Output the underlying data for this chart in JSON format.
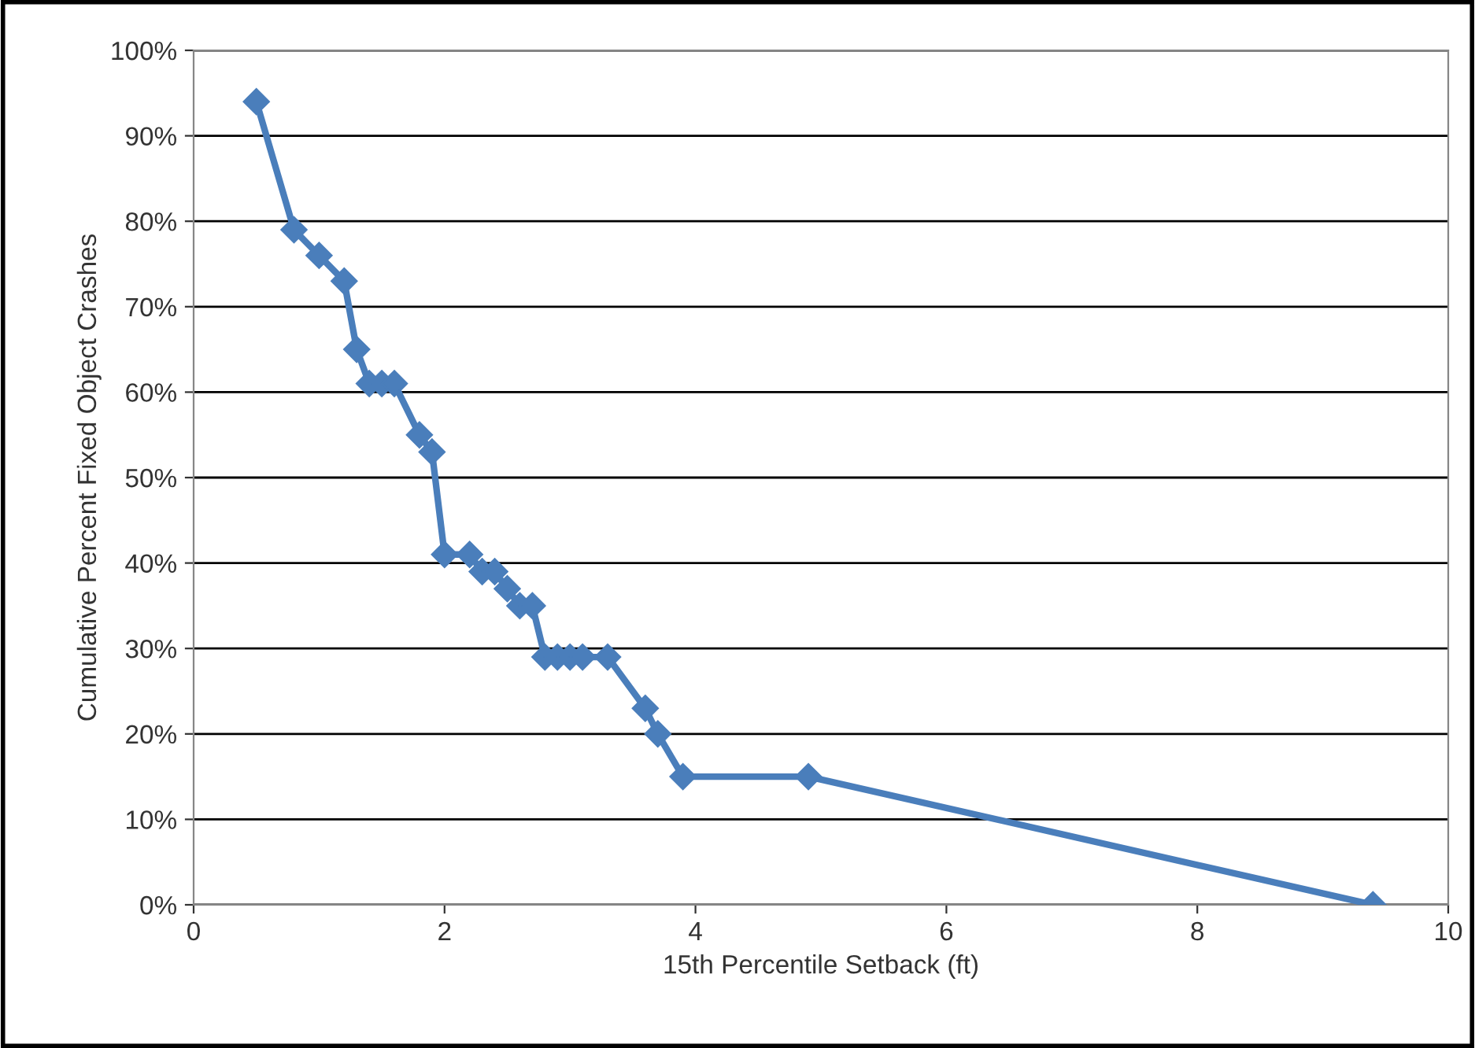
{
  "chart_data": {
    "type": "line",
    "xlabel": "15th Percentile Setback (ft)",
    "ylabel": "Cumulative Percent Fixed Object Crashes",
    "series": [
      {
        "color": "#4a7ebb",
        "x": [
          0.5,
          0.8,
          1.0,
          1.2,
          1.3,
          1.4,
          1.5,
          1.6,
          1.8,
          1.9,
          2.0,
          2.2,
          2.3,
          2.4,
          2.5,
          2.6,
          2.7,
          2.8,
          2.9,
          3.0,
          3.1,
          3.3,
          3.6,
          3.7,
          3.9,
          4.9,
          9.4
        ],
        "values": [
          94,
          79,
          76,
          73,
          65,
          61,
          61,
          61,
          55,
          53,
          41,
          41,
          39,
          39,
          37,
          35,
          35,
          29,
          29,
          29,
          29,
          29,
          23,
          20,
          15,
          15,
          0
        ]
      }
    ],
    "xlim": [
      0,
      10
    ],
    "xticks": [
      0,
      2,
      4,
      6,
      8,
      10
    ],
    "ylim": [
      0,
      100
    ],
    "yticks": [
      {
        "value": 0,
        "label": "0%"
      },
      {
        "value": 10,
        "label": "10%"
      },
      {
        "value": 20,
        "label": "20%"
      },
      {
        "value": 30,
        "label": "30%"
      },
      {
        "value": 40,
        "label": "40%"
      },
      {
        "value": 50,
        "label": "50%"
      },
      {
        "value": 60,
        "label": "60%"
      },
      {
        "value": 70,
        "label": "70%"
      },
      {
        "value": 80,
        "label": "80%"
      },
      {
        "value": 90,
        "label": "90%"
      },
      {
        "value": 100,
        "label": "100%"
      }
    ],
    "grid": "y",
    "marker": "diamond",
    "line_style": "solid"
  }
}
